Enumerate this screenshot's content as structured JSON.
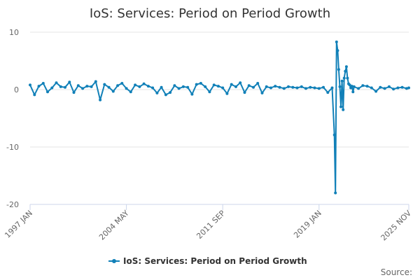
{
  "chart_data": {
    "type": "line",
    "title": "IoS: Services: Period on Period Growth",
    "xlabel": "",
    "ylabel": "",
    "ylim": [
      -20,
      10
    ],
    "yticks": [
      10,
      0,
      -10,
      -20
    ],
    "x_tick_labels": [
      "1997 JAN",
      "2004 MAY",
      "2011 SEP",
      "2019 JAN",
      "2025 NOV"
    ],
    "x_tick_months": [
      0,
      88,
      176,
      264,
      346
    ],
    "x_range_months": [
      0,
      346
    ],
    "grid": "horizontal",
    "legend_position": "bottom",
    "series": [
      {
        "name": "IoS: Services: Period on Period Growth",
        "color": "#1180b8",
        "x_months": [
          0,
          4,
          8,
          12,
          16,
          20,
          24,
          28,
          32,
          36,
          40,
          44,
          48,
          52,
          56,
          60,
          64,
          68,
          72,
          76,
          80,
          84,
          88,
          92,
          96,
          100,
          104,
          108,
          112,
          116,
          120,
          124,
          128,
          132,
          136,
          140,
          144,
          148,
          152,
          156,
          160,
          164,
          168,
          172,
          176,
          180,
          184,
          188,
          192,
          196,
          200,
          204,
          208,
          212,
          216,
          220,
          224,
          228,
          232,
          236,
          240,
          244,
          248,
          252,
          256,
          260,
          264,
          268,
          272,
          276,
          278,
          279,
          280,
          281,
          282,
          283,
          284,
          285,
          286,
          287,
          288,
          289,
          290,
          291,
          292,
          293,
          294,
          295,
          296,
          300,
          304,
          308,
          312,
          316,
          320,
          324,
          328,
          332,
          336,
          340,
          344,
          346
        ],
        "values": [
          0.8,
          -0.9,
          0.6,
          1.1,
          -0.4,
          0.3,
          1.2,
          0.5,
          0.4,
          1.3,
          -0.5,
          0.7,
          0.2,
          0.6,
          0.5,
          1.4,
          -1.8,
          0.9,
          0.4,
          -0.3,
          0.7,
          1.1,
          0.2,
          -0.4,
          0.8,
          0.5,
          1.0,
          0.6,
          0.3,
          -0.6,
          0.4,
          -0.9,
          -0.5,
          0.7,
          0.2,
          0.5,
          0.4,
          -0.8,
          0.9,
          1.1,
          0.5,
          -0.4,
          0.8,
          0.6,
          0.3,
          -0.7,
          0.9,
          0.5,
          1.2,
          -0.5,
          0.7,
          0.4,
          1.1,
          -0.6,
          0.5,
          0.3,
          0.6,
          0.4,
          0.2,
          0.5,
          0.4,
          0.3,
          0.5,
          0.2,
          0.4,
          0.3,
          0.2,
          0.4,
          -0.5,
          0.3,
          -7.9,
          -18.0,
          8.3,
          6.8,
          3.5,
          0.5,
          -3.0,
          1.5,
          -3.5,
          2.0,
          3.2,
          4.0,
          2.0,
          1.0,
          0.8,
          0.3,
          0.6,
          -0.4,
          0.5,
          0.2,
          0.7,
          0.6,
          0.3,
          -0.3,
          0.4,
          0.2,
          0.5,
          0.1,
          0.3,
          0.4,
          0.2,
          0.3
        ]
      }
    ]
  },
  "footer": {
    "source_label": "Source:"
  }
}
